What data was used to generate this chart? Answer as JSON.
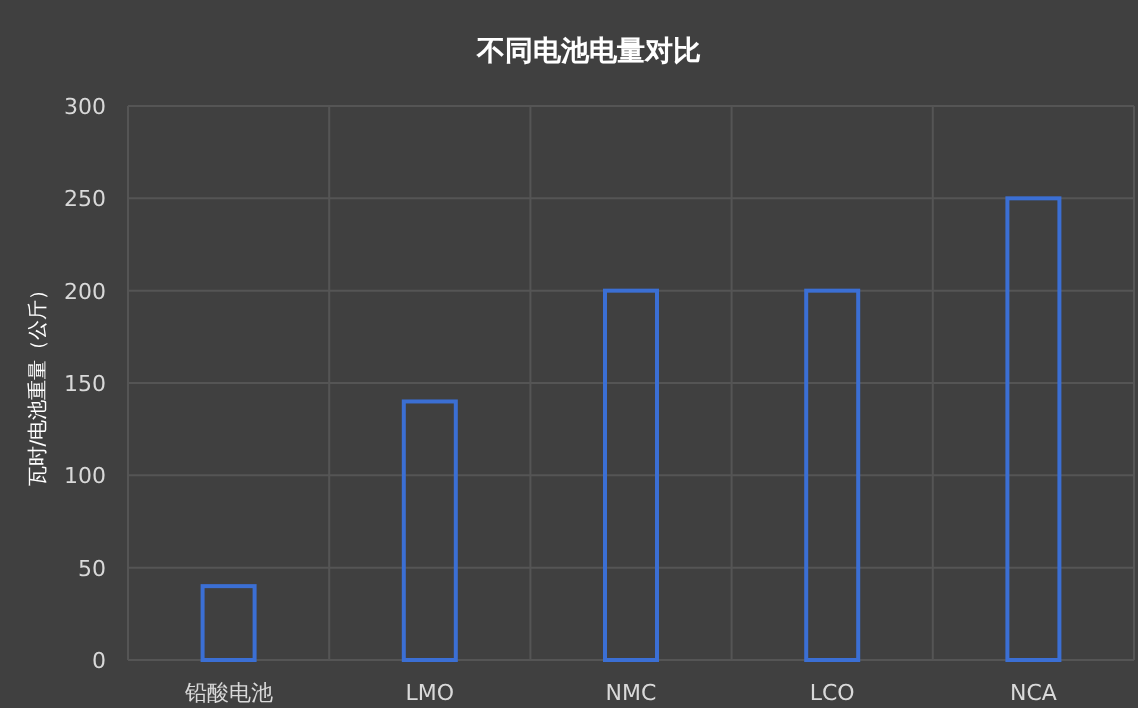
{
  "chart_data": {
    "type": "bar",
    "title": "不同电池电量对比",
    "ylabel": "瓦时/电池重量（公斤）",
    "categories": [
      "铅酸电池",
      "LMO",
      "NMC",
      "LCO",
      "NCA"
    ],
    "values": [
      40,
      140,
      200,
      200,
      250
    ],
    "color": "#3b6fd4",
    "ylim": [
      0,
      300
    ],
    "yticks": [
      0,
      50,
      100,
      150,
      200,
      250,
      300
    ],
    "grid": true
  }
}
